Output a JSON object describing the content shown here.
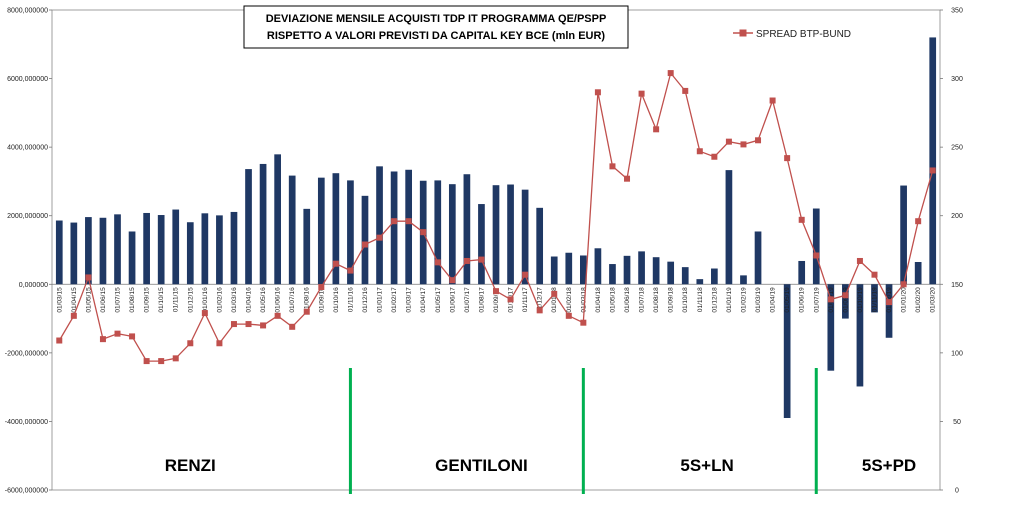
{
  "chart_data": {
    "type": "bar",
    "title_lines": [
      "DEVIAZIONE MENSILE  ACQUISTI TDP IT PROGRAMMA  QE/PSPP",
      "RISPETTO  A VALORI PREVISTI DA CAPITAL KEY BCE (mln EUR)"
    ],
    "categories": [
      "01/03/15",
      "01/04/15",
      "01/05/15",
      "01/06/15",
      "01/07/15",
      "01/08/15",
      "01/09/15",
      "01/10/15",
      "01/11/15",
      "01/12/15",
      "01/01/16",
      "01/02/16",
      "01/03/16",
      "01/04/16",
      "01/05/16",
      "01/06/16",
      "01/07/16",
      "01/08/16",
      "01/09/16",
      "01/10/16",
      "01/11/16",
      "01/12/16",
      "01/01/17",
      "01/02/17",
      "01/03/17",
      "01/04/17",
      "01/05/17",
      "01/06/17",
      "01/07/17",
      "01/08/17",
      "01/09/17",
      "01/10/17",
      "01/11/17",
      "01/12/17",
      "01/01/18",
      "01/02/18",
      "01/03/18",
      "01/04/18",
      "01/05/18",
      "01/06/18",
      "01/07/18",
      "01/08/18",
      "01/09/18",
      "01/10/18",
      "01/11/18",
      "01/12/18",
      "01/01/19",
      "01/02/19",
      "01/03/19",
      "01/04/19",
      "01/05/19",
      "01/06/19",
      "01/07/19",
      "01/08/19",
      "01/09/19",
      "01/10/19",
      "01/11/19",
      "01/12/19",
      "01/01/20",
      "01/02/20",
      "01/03/20"
    ],
    "series": [
      {
        "axis": "left",
        "kind": "bar",
        "color": "#1f3864",
        "values": [
          1860,
          1800,
          1960,
          1940,
          2040,
          1540,
          2080,
          2020,
          2180,
          1810,
          2070,
          2010,
          2110,
          3360,
          3510,
          3790,
          3170,
          2200,
          3110,
          3240,
          3030,
          2580,
          3440,
          3290,
          3340,
          3020,
          3030,
          2920,
          3210,
          2340,
          2890,
          2910,
          2760,
          2230,
          810,
          920,
          840,
          1050,
          590,
          830,
          960,
          790,
          660,
          500,
          150,
          460,
          3330,
          260,
          1540,
          0,
          -3900,
          680,
          2210,
          -2520,
          -1000,
          -2980,
          -820,
          -1560,
          2880,
          650,
          7200
        ]
      },
      {
        "axis": "right",
        "kind": "line",
        "name": "SPREAD BTP-BUND",
        "color": "#c0504d",
        "values": [
          109,
          127,
          155,
          110,
          114,
          112,
          94,
          94,
          96,
          107,
          129,
          107,
          121,
          121,
          120,
          127,
          119,
          130,
          148,
          165,
          160,
          179,
          184,
          196,
          196,
          188,
          166,
          153,
          167,
          168,
          145,
          139,
          157,
          131,
          143,
          127,
          122,
          290,
          236,
          227,
          289,
          263,
          304,
          291,
          247,
          243,
          254,
          252,
          255,
          284,
          242,
          197,
          171,
          139,
          142,
          167,
          157,
          137,
          150,
          196,
          233
        ]
      }
    ],
    "y_left": {
      "min": -6000,
      "max": 8000,
      "step": 2000,
      "tick_labels": [
        "-6000,000000",
        "-4000,000000",
        "-2000,000000",
        "0,000000",
        "2000,000000",
        "4000,000000",
        "6000,000000",
        "8000,000000"
      ]
    },
    "y_right": {
      "min": 0,
      "max": 350,
      "step": 50,
      "tick_labels": [
        "0",
        "50",
        "100",
        "150",
        "200",
        "250",
        "300",
        "350"
      ]
    },
    "legend": {
      "position": "top-right",
      "label": "SPREAD BTP-BUND"
    },
    "grid": false,
    "annotations": {
      "era_labels": [
        "RENZI",
        "GENTILONI",
        "5S+LN",
        "5S+PD"
      ],
      "divider_color": "#00b050",
      "divider_after_index": [
        20,
        36,
        52
      ],
      "era_label_center_index": [
        9,
        29,
        44.5,
        57
      ]
    }
  }
}
